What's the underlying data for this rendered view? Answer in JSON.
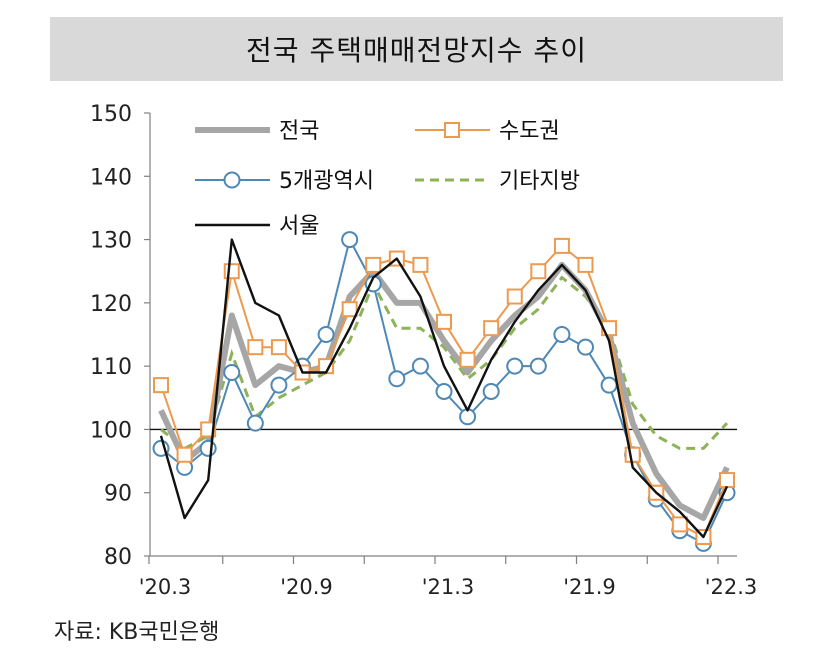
{
  "chart_data": {
    "type": "line",
    "title": "전국 주택매매전망지수 추이",
    "source": "자료: KB국민은행",
    "ylim": [
      80,
      150
    ],
    "yticks": [
      150,
      140,
      130,
      120,
      110,
      100,
      90,
      80
    ],
    "reference_line": 100,
    "x": [
      "'20.3",
      "'20.4",
      "'20.5",
      "'20.6",
      "'20.7",
      "'20.8",
      "'20.9",
      "'20.10",
      "'20.11",
      "'20.12",
      "'21.1",
      "'21.2",
      "'21.3",
      "'21.4",
      "'21.5",
      "'21.6",
      "'21.7",
      "'21.8",
      "'21.9",
      "'21.10",
      "'21.11",
      "'21.12",
      "'22.1",
      "'22.2",
      "'22.3"
    ],
    "xtick_labels": [
      "'20.3",
      "'20.9",
      "'21.3",
      "'21.9",
      "'22.3"
    ],
    "xtick_label_indices": [
      0,
      6,
      12,
      18,
      24
    ],
    "series": [
      {
        "name": "전국",
        "color": "#a6a6a6",
        "style": "thick",
        "values": [
          103,
          95,
          98,
          118,
          107,
          110,
          109,
          110,
          121,
          125,
          120,
          120,
          114,
          109,
          114,
          118,
          121,
          126,
          122,
          115,
          101,
          93,
          88,
          86,
          94
        ]
      },
      {
        "name": "수도권",
        "color": "#ed9a4f",
        "style": "square",
        "values": [
          107,
          96,
          100,
          125,
          113,
          113,
          109,
          110,
          119,
          126,
          127,
          126,
          117,
          111,
          116,
          121,
          125,
          129,
          126,
          116,
          96,
          90,
          85,
          83,
          92
        ]
      },
      {
        "name": "5개광역시",
        "color": "#4e88b4",
        "style": "circle",
        "values": [
          97,
          94,
          97,
          109,
          101,
          107,
          110,
          115,
          130,
          123,
          108,
          110,
          106,
          102,
          106,
          110,
          110,
          115,
          113,
          107,
          96,
          89,
          84,
          82,
          90
        ]
      },
      {
        "name": "기타지방",
        "color": "#8cb357",
        "style": "dashed",
        "values": [
          100,
          97,
          99,
          112,
          102,
          105,
          107,
          109,
          114,
          123,
          116,
          116,
          113,
          108,
          111,
          116,
          119,
          124,
          121,
          116,
          104,
          99,
          97,
          97,
          101
        ]
      },
      {
        "name": "서울",
        "color": "#111111",
        "style": "thin",
        "values": [
          99,
          86,
          92,
          130,
          120,
          118,
          109,
          109,
          116,
          124,
          127,
          121,
          110,
          103,
          111,
          117,
          122,
          126,
          122,
          114,
          94,
          90,
          87,
          83,
          91
        ]
      }
    ]
  }
}
